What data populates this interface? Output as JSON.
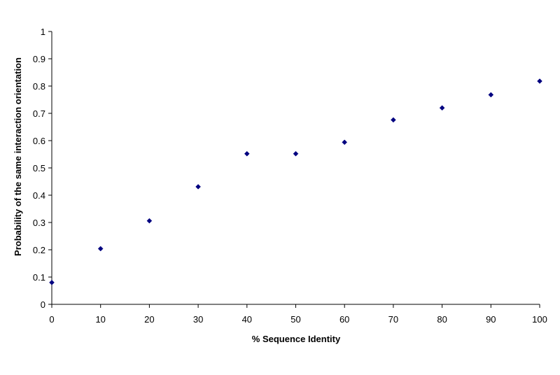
{
  "chart_data": {
    "type": "scatter",
    "title": "",
    "xlabel": "% Sequence Identity",
    "ylabel": "Probability of the same interaction orientation",
    "xlim": [
      0,
      100
    ],
    "ylim": [
      0,
      1
    ],
    "x_ticks": [
      0,
      10,
      20,
      30,
      40,
      50,
      60,
      70,
      80,
      90,
      100
    ],
    "y_ticks": [
      0,
      0.1,
      0.2,
      0.3,
      0.4,
      0.5,
      0.6,
      0.7,
      0.8,
      0.9,
      1
    ],
    "grid": false,
    "legend": "none",
    "marker": "diamond",
    "marker_color": "#000080",
    "series": [
      {
        "x": [
          0,
          10,
          20,
          30,
          40,
          50,
          60,
          70,
          80,
          90,
          100
        ],
        "y": [
          0.08,
          0.204,
          0.306,
          0.431,
          0.552,
          0.552,
          0.594,
          0.676,
          0.72,
          0.768,
          0.818
        ]
      }
    ]
  }
}
